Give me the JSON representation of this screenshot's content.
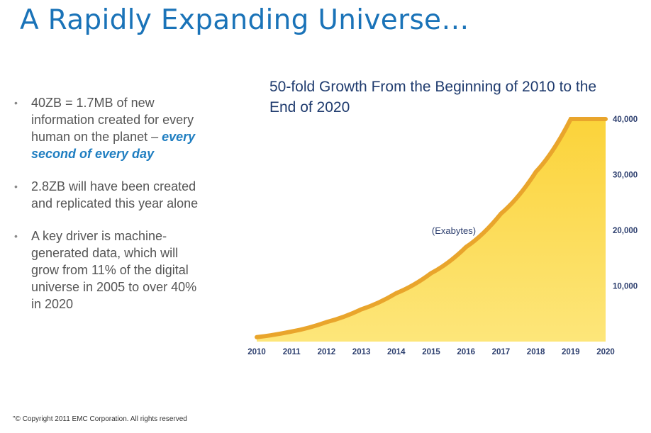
{
  "slide": {
    "title": "A Rapidly Expanding Universe…",
    "footer": "\"© Copyright 2011 EMC Corporation. All rights reserved"
  },
  "bullets": [
    {
      "text": "40ZB = 1.7MB of new information created for every human on the planet – ",
      "emphasis": "every second of every day"
    },
    {
      "text": "2.8ZB will have been created and replicated this year alone",
      "emphasis": ""
    },
    {
      "text": "A key driver is machine-generated data, which will grow from 11% of the digital universe in 2005 to over 40% in 2020",
      "emphasis": ""
    }
  ],
  "chart_data": {
    "type": "area",
    "title": "50-fold Growth From the Beginning of 2010 to the End of 2020",
    "unit_label": "(Exabytes)",
    "x": [
      "2010",
      "2011",
      "2012",
      "2013",
      "2014",
      "2015",
      "2016",
      "2017",
      "2018",
      "2019",
      "2020"
    ],
    "values": [
      800,
      1800,
      3500,
      5800,
      8700,
      12300,
      17000,
      23000,
      30500,
      40000,
      40000
    ],
    "y_ticks": [
      "10,000",
      "20,000",
      "30,000",
      "40,000"
    ],
    "ylim": [
      0,
      40000
    ],
    "colors": {
      "fill": "#fbd33a",
      "fill_light": "#fde67a",
      "ridge": "#e9a52c",
      "axis_text": "#2c3e6e"
    }
  }
}
